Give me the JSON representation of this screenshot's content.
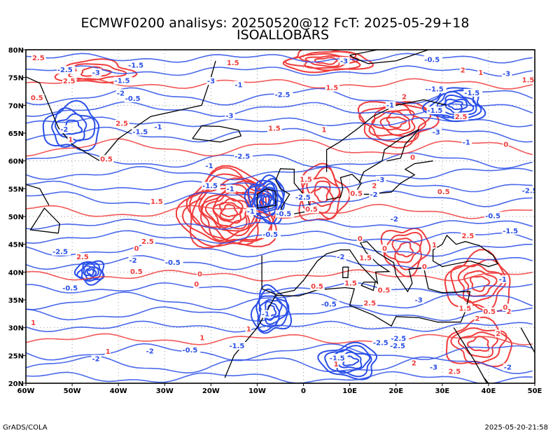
{
  "header": {
    "title": "ECMWF0200 analisys: 20250520@12 FcT: 2025-05-29+18",
    "subtitle": "ISOALLOBARS"
  },
  "footer": {
    "left": "GrADS/COLA",
    "right": "2025-05-20-21:58"
  },
  "colors": {
    "positive_contour": "#f03c3c",
    "negative_contour": "#2a4fe8",
    "coastline": "#000000",
    "grid": "#9a9a9a"
  },
  "map": {
    "lon_range": [
      -60,
      50
    ],
    "lat_range": [
      20,
      80
    ],
    "grid_step_deg": 10,
    "lon_ticks": [
      "60W",
      "50W",
      "40W",
      "30W",
      "20W",
      "10W",
      "0",
      "10E",
      "20E",
      "30E",
      "40E",
      "50E"
    ],
    "lat_ticks": [
      "20N",
      "25N",
      "30N",
      "35N",
      "40N",
      "45N",
      "50N",
      "55N",
      "60N",
      "65N",
      "70N",
      "75N",
      "80N"
    ]
  },
  "chart_data": {
    "type": "contour-map",
    "title": "ECMWF0200 analisys: 20250520@12 FcT: 2025-05-29+18",
    "subtitle": "ISOALLOBARS",
    "contour_interval": 0.5,
    "centers": [
      {
        "sign": "positive",
        "lon": -16,
        "lat": 51,
        "peak": 6.5,
        "rx": 10,
        "ry": 7
      },
      {
        "sign": "positive",
        "lon": 4,
        "lat": 54,
        "peak": 2.5,
        "rx": 5,
        "ry": 5
      },
      {
        "sign": "positive",
        "lon": 20,
        "lat": 67,
        "peak": 3.0,
        "rx": 8,
        "ry": 4
      },
      {
        "sign": "positive",
        "lon": 22,
        "lat": 44,
        "peak": 2.0,
        "rx": 5,
        "ry": 4
      },
      {
        "sign": "positive",
        "lon": 38,
        "lat": 38,
        "peak": 2.5,
        "rx": 7,
        "ry": 5
      },
      {
        "sign": "positive",
        "lon": 38,
        "lat": 27,
        "peak": 2.0,
        "rx": 7,
        "ry": 4
      },
      {
        "sign": "positive",
        "lon": 5,
        "lat": 78,
        "peak": 2.5,
        "rx": 9,
        "ry": 2
      },
      {
        "sign": "positive",
        "lon": -45,
        "lat": 76,
        "peak": 1.5,
        "rx": 8,
        "ry": 2
      },
      {
        "sign": "negative",
        "lon": -8,
        "lat": 53,
        "peak": 5.0,
        "rx": 4,
        "ry": 4
      },
      {
        "sign": "negative",
        "lon": -46,
        "lat": 40,
        "peak": 3.0,
        "rx": 3,
        "ry": 2
      },
      {
        "sign": "negative",
        "lon": -7,
        "lat": 33,
        "peak": 3.0,
        "rx": 4,
        "ry": 4
      },
      {
        "sign": "negative",
        "lon": 33,
        "lat": 70,
        "peak": 3.0,
        "rx": 6,
        "ry": 3
      },
      {
        "sign": "negative",
        "lon": -50,
        "lat": 66,
        "peak": 2.0,
        "rx": 6,
        "ry": 4
      },
      {
        "sign": "negative",
        "lon": 10,
        "lat": 24,
        "peak": 2.5,
        "rx": 6,
        "ry": 3
      }
    ],
    "contour_labels": [
      "-1.5",
      "-0.5",
      "0.5",
      "1.5",
      "-2.5",
      "2.5",
      "-1",
      "-2",
      "-3",
      "1",
      "2",
      "0"
    ]
  }
}
